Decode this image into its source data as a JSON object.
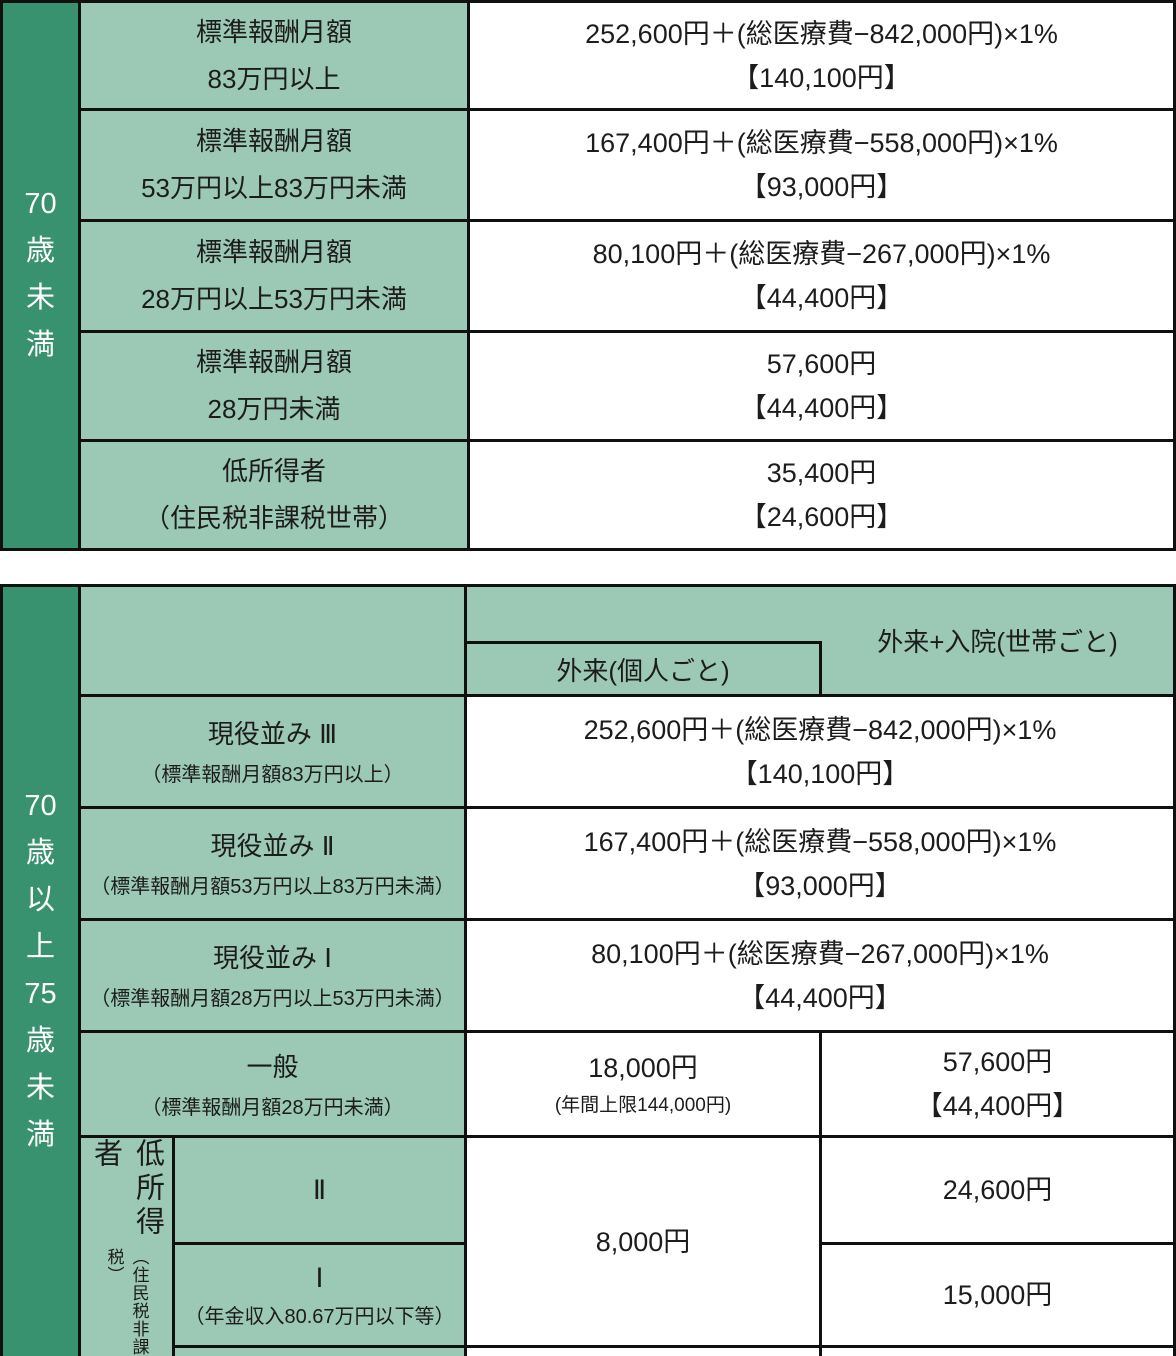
{
  "colors": {
    "dark_green": "#38916f",
    "light_green": "#9cc8b6",
    "border": "#101010",
    "text": "#1c1c1c",
    "background": "#ffffff"
  },
  "table1": {
    "age_chars": [
      "70",
      "歳",
      "未",
      "満"
    ],
    "rows": [
      {
        "cat1": "標準報酬月額",
        "cat2": "83万円以上",
        "val1": "252,600円＋(総医療費−842,000円)×1%",
        "val2": "【140,100円】"
      },
      {
        "cat1": "標準報酬月額",
        "cat2": "53万円以上83万円未満",
        "val1": "167,400円＋(総医療費−558,000円)×1%",
        "val2": "【93,000円】"
      },
      {
        "cat1": "標準報酬月額",
        "cat2": "28万円以上53万円未満",
        "val1": "80,100円＋(総医療費−267,000円)×1%",
        "val2": "【44,400円】"
      },
      {
        "cat1": "標準報酬月額",
        "cat2": "28万円未満",
        "val1": "57,600円",
        "val2": "【44,400円】"
      },
      {
        "cat1": "低所得者",
        "cat2": "（住民税非課税世帯）",
        "val1": "35,400円",
        "val2": "【24,600円】"
      }
    ]
  },
  "table2": {
    "age_chars": [
      "70",
      "歳",
      "以",
      "上",
      "75",
      "歳",
      "未",
      "満"
    ],
    "header": {
      "outpatient": "外来(個人ごと)",
      "household": "外来+入院(世帯ごと)"
    },
    "rows": [
      {
        "cat1": "現役並み Ⅲ",
        "cat2": "（標準報酬月額83万円以上）",
        "val1": "252,600円＋(総医療費−842,000円)×1%",
        "val2": "【140,100円】"
      },
      {
        "cat1": "現役並み Ⅱ",
        "cat2": "（標準報酬月額53万円以上83万円未満）",
        "val1": "167,400円＋(総医療費−558,000円)×1%",
        "val2": "【93,000円】"
      },
      {
        "cat1": "現役並み Ⅰ",
        "cat2": "（標準報酬月額28万円以上53万円未満）",
        "val1": "80,100円＋(総医療費−267,000円)×1%",
        "val2": "【44,400円】"
      }
    ],
    "general": {
      "cat1": "一般",
      "cat2": "（標準報酬月額28万円未満）",
      "outpatient1": "18,000円",
      "outpatient2": "(年間上限144,000円)",
      "household1": "57,600円",
      "household2": "【44,400円】"
    },
    "low_income": {
      "label": "低所得者",
      "note": "（住民税非課税）",
      "shared_outpatient": "8,000円",
      "row_ii": {
        "label": "Ⅱ",
        "household": "24,600円"
      },
      "row_i": {
        "label": "Ⅰ",
        "sub": "（年金収入80.67万円以下等）",
        "household": "15,000円"
      }
    }
  }
}
